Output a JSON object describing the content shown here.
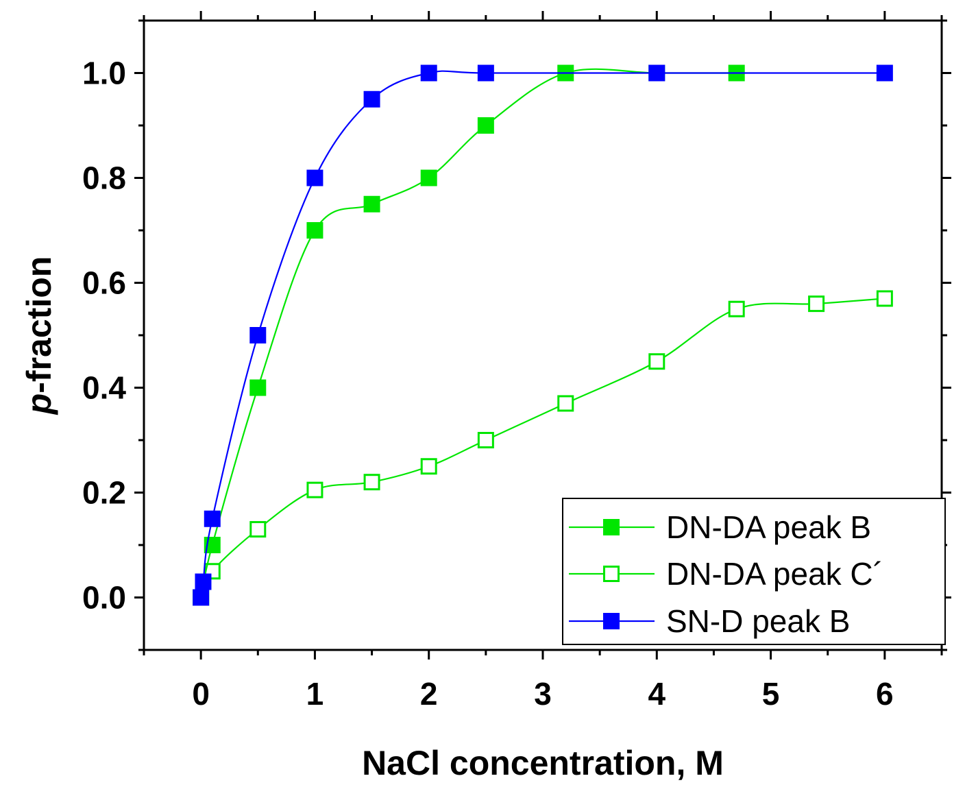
{
  "chart_data": {
    "type": "line",
    "title": "",
    "xlabel": "NaCl concentration, M",
    "ylabel_italic": "p",
    "ylabel_rest": "-fraction",
    "xlim": [
      -0.5,
      6.5
    ],
    "ylim": [
      -0.1,
      1.1
    ],
    "x_ticks": [
      0,
      1,
      2,
      3,
      4,
      5,
      6
    ],
    "x_tick_labels": [
      "0",
      "1",
      "2",
      "3",
      "4",
      "5",
      "6"
    ],
    "y_ticks": [
      0.0,
      0.2,
      0.4,
      0.6,
      0.8,
      1.0
    ],
    "y_tick_labels": [
      "0.0",
      "0.2",
      "0.4",
      "0.6",
      "0.8",
      "1.0"
    ],
    "grid": false,
    "legend_position": "bottom-right",
    "series": [
      {
        "name": "DN-DA peak B",
        "color": "#00e600",
        "marker": "filled-square",
        "x": [
          0,
          0.1,
          0.5,
          1.0,
          1.5,
          2.0,
          2.5,
          3.2,
          4.0,
          4.7
        ],
        "y": [
          0.0,
          0.1,
          0.4,
          0.7,
          0.75,
          0.8,
          0.9,
          1.0,
          1.0,
          1.0
        ]
      },
      {
        "name": "DN-DA peak C´",
        "color": "#00e600",
        "marker": "open-square",
        "x": [
          0,
          0.1,
          0.5,
          1.0,
          1.5,
          2.0,
          2.5,
          3.2,
          4.0,
          4.7,
          5.4,
          6.0
        ],
        "y": [
          0.0,
          0.05,
          0.13,
          0.205,
          0.22,
          0.25,
          0.3,
          0.37,
          0.45,
          0.55,
          0.56,
          0.57
        ]
      },
      {
        "name": "SN-D peak B",
        "color": "#0000ff",
        "marker": "filled-square",
        "x": [
          0,
          0.02,
          0.1,
          0.5,
          1.0,
          1.5,
          2.0,
          2.5,
          4.0,
          6.0
        ],
        "y": [
          0.0,
          0.03,
          0.15,
          0.5,
          0.8,
          0.95,
          1.0,
          1.0,
          1.0,
          1.0
        ]
      }
    ]
  }
}
